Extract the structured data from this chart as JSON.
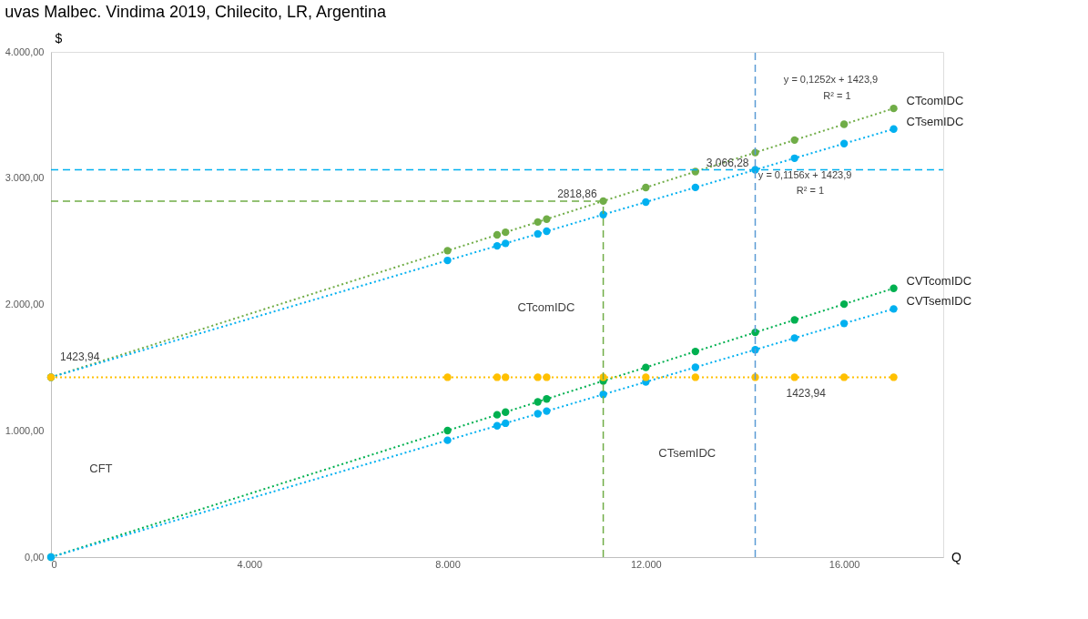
{
  "chart_data": {
    "type": "line",
    "title": "uvas Malbec. Vindima 2019, Chilecito, LR, Argentina",
    "xlabel": "Q",
    "ylabel": "$",
    "x": [
      0,
      8000,
      9000,
      9170,
      9820,
      10000,
      11141,
      12000,
      13000,
      14207,
      15000,
      16000,
      17000
    ],
    "series": [
      {
        "name": "CTcomIDC",
        "color": "#70ad47",
        "values": [
          1423.94,
          2426,
          2551,
          2572,
          2653,
          2676,
          2818.86,
          2926,
          3052,
          3203,
          3302,
          3427,
          3552
        ]
      },
      {
        "name": "CTsemIDC",
        "color": "#00b0f0",
        "values": [
          1423.94,
          2349,
          2464,
          2484,
          2559,
          2580,
          2712,
          2811,
          2927,
          3066.28,
          3158,
          3274,
          3389
        ]
      },
      {
        "name": "CVTcomIDC",
        "color": "#00b050",
        "values": [
          0,
          1002,
          1127,
          1148,
          1229,
          1252,
          1395,
          1502,
          1628,
          1779,
          1878,
          2003,
          2128
        ]
      },
      {
        "name": "CVTsemIDC",
        "color": "#00b0f0",
        "values": [
          0,
          925,
          1040,
          1060,
          1135,
          1156,
          1288,
          1387,
          1503,
          1642,
          1734,
          1850,
          1965
        ]
      },
      {
        "color": "#ffc000",
        "values": [
          1423.94,
          1423.94,
          1423.94,
          1423.94,
          1423.94,
          1423.94,
          1423.94,
          1423.94,
          1423.94,
          1423.94,
          1423.94,
          1423.94,
          1423.94
        ]
      }
    ],
    "xlim": [
      0,
      18000
    ],
    "ylim": [
      0,
      4000
    ],
    "xticks": [
      0,
      {
        "value": 4000,
        "label": "4.000"
      },
      {
        "value": 8000,
        "label": "8.000"
      },
      {
        "value": 12000,
        "label": "12.000"
      },
      {
        "value": 16000,
        "label": "16.000"
      }
    ],
    "yticks": [
      {
        "value": 0,
        "label": "0,00"
      },
      {
        "value": 1000,
        "label": "1.000,00"
      },
      {
        "value": 2000,
        "label": "2.000,00"
      },
      {
        "value": 3000,
        "label": "3.000,00"
      },
      {
        "value": 4000,
        "label": "4.000,00"
      }
    ],
    "ref_lines": [
      {
        "axis": "y",
        "value": 3066.28,
        "color": "#00b0f0",
        "line_style": "dashed"
      },
      {
        "axis": "y",
        "value": 2818.86,
        "color": "#70ad47",
        "line_style": "dashed"
      },
      {
        "axis": "x",
        "value": 14207,
        "color": "#5b9bd5",
        "line_style": "dashed"
      },
      {
        "axis": "x",
        "value": 11141,
        "color": "#70ad47",
        "line_style": "dashed"
      }
    ],
    "annotations": [
      {
        "text": "2818,86",
        "x": 11141,
        "y": 2818.86
      },
      {
        "text": "3.066,28",
        "x": 14207,
        "y": 3066.28
      },
      {
        "text": "1423,94",
        "x": 0,
        "y": 1423.94
      },
      {
        "text": "1423,94",
        "x": 14207,
        "y": 1423.94
      },
      "y = 0,1252x + 1423,9",
      "R² = 1",
      "y = 0,1156x + 1423,9",
      "R² = 1",
      "CTcomIDC",
      "CFT",
      "CTsemIDC"
    ],
    "marker": "circle",
    "line_style": "dotted",
    "grid": false
  }
}
